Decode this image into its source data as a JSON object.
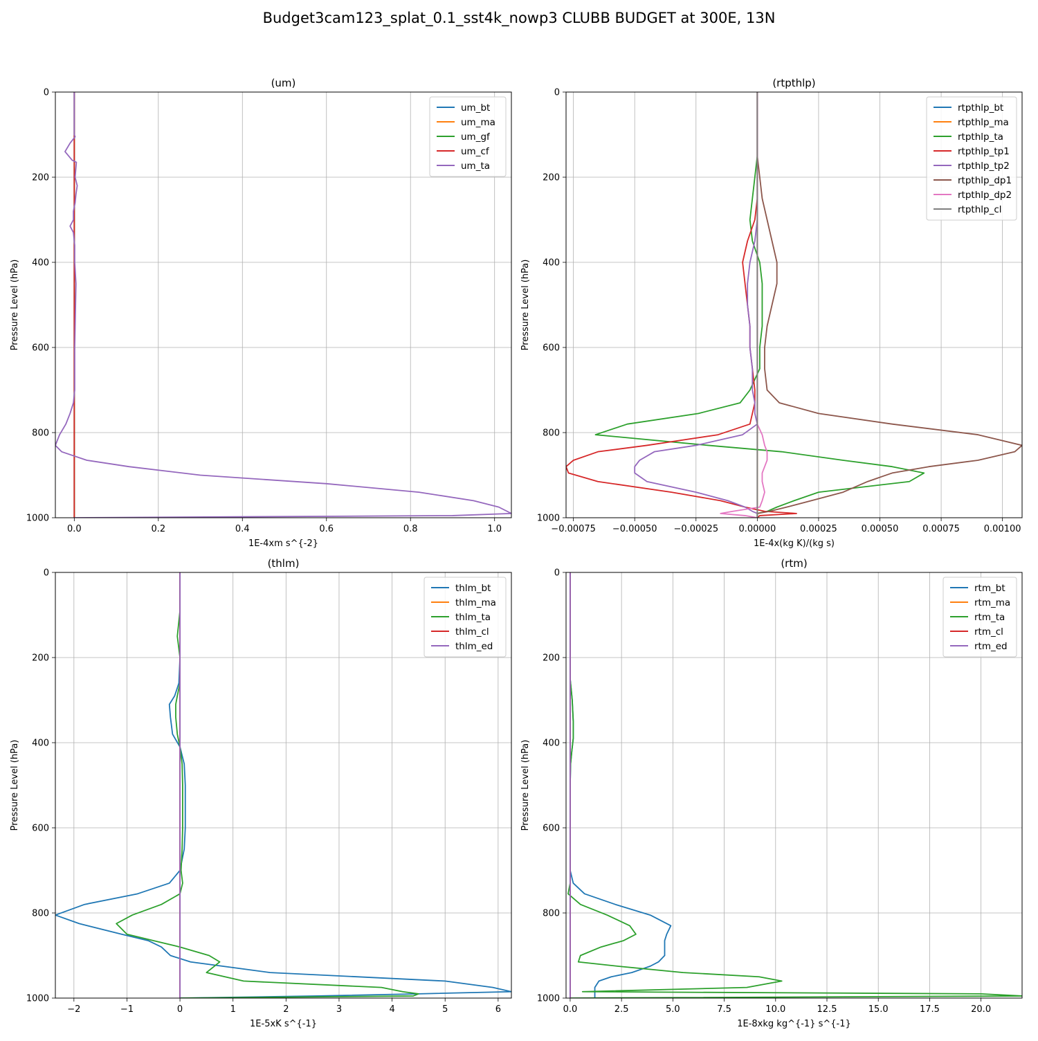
{
  "figure_title": "Budget3cam123_splat_0.1_sst4k_nowp3 CLUBB BUDGET at 300E, 13N",
  "chart_data": [
    {
      "type": "line",
      "title": "(um)",
      "xlabel": "1E-4xm s^{-2}",
      "ylabel": "Pressure Level (hPa)",
      "xlim": [
        -0.045,
        1.04
      ],
      "ylim": [
        1000,
        0
      ],
      "xticks": [
        0.0,
        0.2,
        0.4,
        0.6,
        0.8,
        1.0
      ],
      "xtick_labels": [
        "0.0",
        "0.2",
        "0.4",
        "0.6",
        "0.8",
        "1.0"
      ],
      "yticks": [
        0,
        200,
        400,
        600,
        800,
        1000
      ],
      "grid": true,
      "legend": "top-right",
      "y": [
        0,
        100,
        105,
        120,
        140,
        160,
        165,
        200,
        220,
        240,
        260,
        280,
        300,
        315,
        330,
        360,
        400,
        450,
        500,
        600,
        700,
        730,
        755,
        780,
        805,
        830,
        845,
        865,
        880,
        900,
        920,
        940,
        960,
        975,
        990,
        995,
        1000
      ],
      "series": [
        {
          "name": "um_bt",
          "color": "#1f77b4",
          "x": [
            0.0,
            0.0,
            0.0,
            0.0,
            0.0,
            0.0,
            0.0,
            0.0,
            0.0,
            0.0,
            0.0,
            0.0,
            0.0,
            0.0,
            0.0,
            0.0,
            0.0,
            0.0,
            0.0,
            0.0,
            0.0,
            0.0,
            0.0,
            0.0,
            0.0,
            0.0,
            0.0,
            0.0,
            0.0,
            0.0,
            0.0,
            0.0,
            0.0,
            0.0,
            0.0,
            0.0,
            0.0
          ]
        },
        {
          "name": "um_ma",
          "color": "#ff7f0e",
          "x": [
            0.0,
            0.0,
            0.0,
            0.0,
            0.0,
            0.0,
            0.0,
            0.0,
            0.0,
            0.0,
            0.0,
            0.0,
            0.0,
            0.0,
            0.0,
            0.0,
            0.0,
            0.0,
            0.0,
            0.0,
            0.0,
            0.0,
            0.0,
            0.0,
            0.0,
            0.0,
            0.0,
            0.0,
            0.0,
            0.0,
            0.0,
            0.0,
            0.0,
            0.0,
            0.0,
            0.0,
            0.0
          ]
        },
        {
          "name": "um_gf",
          "color": "#2ca02c",
          "x": [
            0.0,
            0.0,
            0.0,
            0.0,
            0.0,
            0.0,
            0.0,
            0.0,
            0.0,
            0.0,
            0.0,
            0.0,
            0.0,
            0.0,
            0.0,
            0.0,
            0.0,
            0.0,
            0.0,
            0.0,
            0.0,
            0.0,
            0.0,
            0.0,
            0.0,
            0.0,
            0.0,
            0.0,
            0.0,
            0.0,
            0.0,
            0.0,
            0.0,
            0.0,
            0.0,
            0.0,
            0.0
          ]
        },
        {
          "name": "um_cf",
          "color": "#d62728",
          "x": [
            0.0,
            0.0,
            0.0,
            0.0,
            0.0,
            0.0,
            0.0,
            0.0,
            0.0,
            0.0,
            0.0,
            0.0,
            0.0,
            0.0,
            0.0,
            0.0,
            0.0,
            0.0,
            0.0,
            0.0,
            0.0,
            0.0,
            0.0,
            0.0,
            0.0,
            0.0,
            0.0,
            0.0,
            0.0,
            0.0,
            0.0,
            0.0,
            0.0,
            0.0,
            0.0,
            0.0,
            0.0
          ]
        },
        {
          "name": "um_ta",
          "color": "#9467bd",
          "x": [
            0.0,
            0.0,
            0.002,
            -0.01,
            -0.022,
            -0.005,
            0.005,
            0.002,
            0.007,
            0.004,
            0.002,
            -0.002,
            -0.002,
            -0.01,
            -0.002,
            0.001,
            0.001,
            0.004,
            0.003,
            0.001,
            0.001,
            -0.002,
            -0.01,
            -0.02,
            -0.035,
            -0.045,
            -0.03,
            0.03,
            0.13,
            0.3,
            0.6,
            0.82,
            0.95,
            1.01,
            1.04,
            0.9,
            0.0
          ]
        }
      ]
    },
    {
      "type": "line",
      "title": "(rtpthlp)",
      "xlabel": "1E-4x(kg K)/(kg s)",
      "ylabel": "Pressure Level (hPa)",
      "xlim": [
        -0.00078,
        0.00108
      ],
      "ylim": [
        1000,
        0
      ],
      "xticks": [
        -0.00075,
        -0.0005,
        -0.00025,
        0.0,
        0.00025,
        0.0005,
        0.00075,
        0.001
      ],
      "xtick_labels": [
        "−0.00075",
        "−0.00050",
        "−0.00025",
        "0.00000",
        "0.00025",
        "0.00050",
        "0.00075",
        "0.00100"
      ],
      "yticks": [
        0,
        200,
        400,
        600,
        800,
        1000
      ],
      "grid": true,
      "legend": "top-right",
      "y": [
        0,
        100,
        150,
        200,
        250,
        300,
        350,
        400,
        450,
        500,
        550,
        600,
        650,
        700,
        730,
        755,
        780,
        805,
        830,
        845,
        865,
        880,
        895,
        915,
        940,
        960,
        975,
        985,
        990,
        995,
        1000
      ],
      "series": [
        {
          "name": "rtpthlp_bt",
          "color": "#1f77b4",
          "x": [
            0,
            0,
            0,
            0,
            0,
            0,
            0,
            0,
            0,
            0,
            0,
            0,
            0,
            0,
            0,
            0,
            0,
            0,
            0,
            0,
            0,
            0,
            0,
            0,
            0,
            0,
            0,
            0,
            0,
            0,
            0
          ]
        },
        {
          "name": "rtpthlp_ma",
          "color": "#ff7f0e",
          "x": [
            0,
            0,
            0,
            0,
            0,
            0,
            0,
            0,
            0,
            0,
            0,
            0,
            0,
            0,
            0,
            0,
            0,
            0,
            0,
            0,
            0,
            0,
            0,
            0,
            0,
            0,
            0,
            0,
            0,
            0,
            0
          ]
        },
        {
          "name": "rtpthlp_ta",
          "color": "#2ca02c",
          "x": [
            0.0,
            0.0,
            0.0,
            -1e-05,
            -2e-05,
            -3e-05,
            -2e-05,
            1e-05,
            2e-05,
            2e-05,
            2e-05,
            1e-05,
            1e-05,
            -3e-05,
            -7e-05,
            -0.00024,
            -0.00053,
            -0.00066,
            -0.0002,
            0.0001,
            0.00035,
            0.00055,
            0.00068,
            0.00062,
            0.00025,
            0.00015,
            8e-05,
            4e-05,
            0.0,
            0.0,
            0.0
          ]
        },
        {
          "name": "rtpthlp_tp1",
          "color": "#d62728",
          "x": [
            0.0,
            0.0,
            0.0,
            0.0,
            0.0,
            -1e-05,
            -4e-05,
            -6e-05,
            -5e-05,
            -4e-05,
            -3e-05,
            -3e-05,
            -2e-05,
            -1e-05,
            -1e-05,
            -2e-05,
            -3e-05,
            -0.00016,
            -0.00045,
            -0.00065,
            -0.00075,
            -0.00078,
            -0.00077,
            -0.00065,
            -0.00035,
            -0.00015,
            -5e-05,
            3e-05,
            0.00016,
            1e-05,
            0.0
          ]
        },
        {
          "name": "rtpthlp_tp2",
          "color": "#9467bd",
          "x": [
            0.0,
            0.0,
            0.0,
            0.0,
            0.0,
            0.0,
            -1e-05,
            -3e-05,
            -4e-05,
            -4e-05,
            -3e-05,
            -3e-05,
            -2e-05,
            -2e-05,
            -1e-05,
            -1e-05,
            0.0,
            -6e-05,
            -0.00025,
            -0.00042,
            -0.00048,
            -0.0005,
            -0.0005,
            -0.00045,
            -0.00025,
            -0.00012,
            -5e-05,
            -2e-05,
            0.0,
            0.0,
            0.0
          ]
        },
        {
          "name": "rtpthlp_dp1",
          "color": "#8c564b",
          "x": [
            0.0,
            0.0,
            0.0,
            1e-05,
            2e-05,
            4e-05,
            6e-05,
            8e-05,
            8e-05,
            6e-05,
            4e-05,
            3e-05,
            3e-05,
            4e-05,
            9e-05,
            0.00025,
            0.00055,
            0.0009,
            0.00108,
            0.00105,
            0.0009,
            0.0007,
            0.00055,
            0.00045,
            0.00035,
            0.00022,
            0.00012,
            5e-05,
            0.0,
            0.0,
            0.0
          ]
        },
        {
          "name": "rtpthlp_dp2",
          "color": "#e377c2",
          "x": [
            0,
            0,
            0,
            0,
            0,
            0,
            0,
            0,
            0,
            0,
            0,
            0,
            0,
            0,
            0,
            0,
            0,
            2e-05,
            3e-05,
            4e-05,
            4e-05,
            3e-05,
            2e-05,
            2e-05,
            3e-05,
            2e-05,
            1e-05,
            -0.0001,
            -0.00015,
            -5e-05,
            0.0
          ]
        },
        {
          "name": "rtpthlp_cl",
          "color": "#7f7f7f",
          "x": [
            0,
            0,
            0,
            0,
            0,
            0,
            0,
            0,
            0,
            0,
            0,
            0,
            0,
            0,
            0,
            0,
            0,
            0,
            0,
            0,
            0,
            0,
            0,
            0,
            0,
            0,
            0,
            0,
            0,
            0,
            0
          ]
        }
      ]
    },
    {
      "type": "line",
      "title": "(thlm)",
      "xlabel": "1E-5xK s^{-1}",
      "ylabel": "Pressure Level (hPa)",
      "xlim": [
        -2.35,
        6.25
      ],
      "ylim": [
        1000,
        0
      ],
      "xticks": [
        -2,
        -1,
        0,
        1,
        2,
        3,
        4,
        5,
        6
      ],
      "xtick_labels": [
        "−2",
        "−1",
        "0",
        "1",
        "2",
        "3",
        "4",
        "5",
        "6"
      ],
      "yticks": [
        0,
        200,
        400,
        600,
        800,
        1000
      ],
      "grid": true,
      "legend": "top-right",
      "y": [
        0,
        90,
        150,
        170,
        200,
        260,
        290,
        310,
        340,
        380,
        410,
        450,
        500,
        600,
        650,
        700,
        730,
        755,
        780,
        805,
        825,
        850,
        865,
        880,
        900,
        915,
        940,
        960,
        975,
        985,
        990,
        995,
        1000
      ],
      "series": [
        {
          "name": "thlm_bt",
          "color": "#1f77b4",
          "x": [
            0.0,
            0.0,
            0.0,
            0.0,
            0.0,
            -0.02,
            -0.1,
            -0.2,
            -0.18,
            -0.14,
            0.0,
            0.08,
            0.1,
            0.1,
            0.08,
            0.0,
            -0.2,
            -0.8,
            -1.8,
            -2.35,
            -1.9,
            -1.1,
            -0.6,
            -0.35,
            -0.18,
            0.2,
            1.7,
            5.0,
            5.9,
            6.25,
            4.5,
            2.6,
            0.0
          ]
        },
        {
          "name": "thlm_ma",
          "color": "#ff7f0e",
          "x": [
            0,
            0,
            0,
            0,
            0,
            0,
            0,
            0,
            0,
            0,
            0,
            0,
            0,
            0,
            0,
            0,
            0,
            0,
            0,
            0,
            0,
            0,
            0,
            0,
            0,
            0,
            0,
            0,
            0,
            0,
            0,
            0,
            0
          ]
        },
        {
          "name": "thlm_ta",
          "color": "#2ca02c",
          "x": [
            0.0,
            0.0,
            -0.05,
            -0.03,
            0.0,
            0.0,
            -0.05,
            -0.08,
            -0.08,
            -0.05,
            0.0,
            0.04,
            0.05,
            0.05,
            0.04,
            0.02,
            0.05,
            0.0,
            -0.35,
            -0.9,
            -1.2,
            -1.0,
            -0.5,
            0.0,
            0.55,
            0.75,
            0.5,
            1.2,
            3.8,
            4.2,
            4.5,
            4.4,
            0.0
          ]
        },
        {
          "name": "thlm_cl",
          "color": "#d62728",
          "x": [
            0,
            0,
            0,
            0,
            0,
            0,
            0,
            0,
            0,
            0,
            0,
            0,
            0,
            0,
            0,
            0,
            0,
            0,
            0,
            0,
            0,
            0,
            0,
            0,
            0,
            0,
            0,
            0,
            0,
            0,
            0,
            0,
            0
          ]
        },
        {
          "name": "thlm_ed",
          "color": "#9467bd",
          "x": [
            0,
            0,
            0,
            0,
            0,
            0,
            0,
            0,
            0,
            0,
            0,
            0,
            0,
            0,
            0,
            0,
            0,
            0,
            0,
            0,
            0,
            0,
            0,
            0,
            0,
            0,
            0,
            0,
            0,
            0,
            0,
            0,
            0
          ]
        }
      ]
    },
    {
      "type": "line",
      "title": "(rtm)",
      "xlabel": "1E-8xkg kg^{-1} s^{-1}",
      "ylabel": "Pressure Level (hPa)",
      "xlim": [
        -0.2,
        22.0
      ],
      "ylim": [
        1000,
        0
      ],
      "xticks": [
        0.0,
        2.5,
        5.0,
        7.5,
        10.0,
        12.5,
        15.0,
        17.5,
        20.0
      ],
      "xtick_labels": [
        "0.0",
        "2.5",
        "5.0",
        "7.5",
        "10.0",
        "12.5",
        "15.0",
        "17.5",
        "20.0"
      ],
      "yticks": [
        0,
        200,
        400,
        600,
        800,
        1000
      ],
      "grid": true,
      "legend": "top-right",
      "y": [
        0,
        250,
        300,
        350,
        390,
        420,
        450,
        500,
        600,
        700,
        730,
        755,
        780,
        805,
        830,
        850,
        865,
        880,
        900,
        915,
        925,
        940,
        950,
        960,
        975,
        985,
        990,
        995,
        1000
      ],
      "series": [
        {
          "name": "rtm_bt",
          "color": "#1f77b4",
          "x": [
            0.0,
            0.0,
            0.1,
            0.15,
            0.15,
            0.08,
            0.02,
            0.0,
            0.0,
            0.0,
            0.15,
            0.7,
            2.2,
            3.9,
            4.9,
            4.7,
            4.6,
            4.6,
            4.6,
            4.3,
            3.9,
            3.0,
            2.0,
            1.4,
            1.2,
            1.2,
            1.2,
            1.2,
            1.2
          ]
        },
        {
          "name": "rtm_ma",
          "color": "#ff7f0e",
          "x": [
            0,
            0,
            0,
            0,
            0,
            0,
            0,
            0,
            0,
            0,
            0,
            0,
            0,
            0,
            0,
            0,
            0,
            0,
            0,
            0,
            0,
            0,
            0,
            0,
            0,
            0,
            0,
            0,
            0
          ]
        },
        {
          "name": "rtm_ta",
          "color": "#2ca02c",
          "x": [
            0.0,
            0.0,
            0.1,
            0.15,
            0.15,
            0.08,
            0.02,
            0.0,
            0.0,
            0.0,
            0.0,
            -0.1,
            0.5,
            1.8,
            2.9,
            3.2,
            2.6,
            1.5,
            0.5,
            0.4,
            2.3,
            5.5,
            9.2,
            10.3,
            8.6,
            0.6,
            20.0,
            22.0,
            0.0
          ]
        },
        {
          "name": "rtm_cl",
          "color": "#d62728",
          "x": [
            0,
            0,
            0,
            0,
            0,
            0,
            0,
            0,
            0,
            0,
            0,
            0,
            0,
            0,
            0,
            0,
            0,
            0,
            0,
            0,
            0,
            0,
            0,
            0,
            0,
            0,
            0,
            0,
            0
          ]
        },
        {
          "name": "rtm_ed",
          "color": "#9467bd",
          "x": [
            0,
            0,
            0,
            0,
            0,
            0,
            0,
            0,
            0,
            0,
            0,
            0,
            0,
            0,
            0,
            0,
            0,
            0,
            0,
            0,
            0,
            0,
            0,
            0,
            0,
            0,
            0,
            0,
            0
          ]
        }
      ]
    }
  ]
}
